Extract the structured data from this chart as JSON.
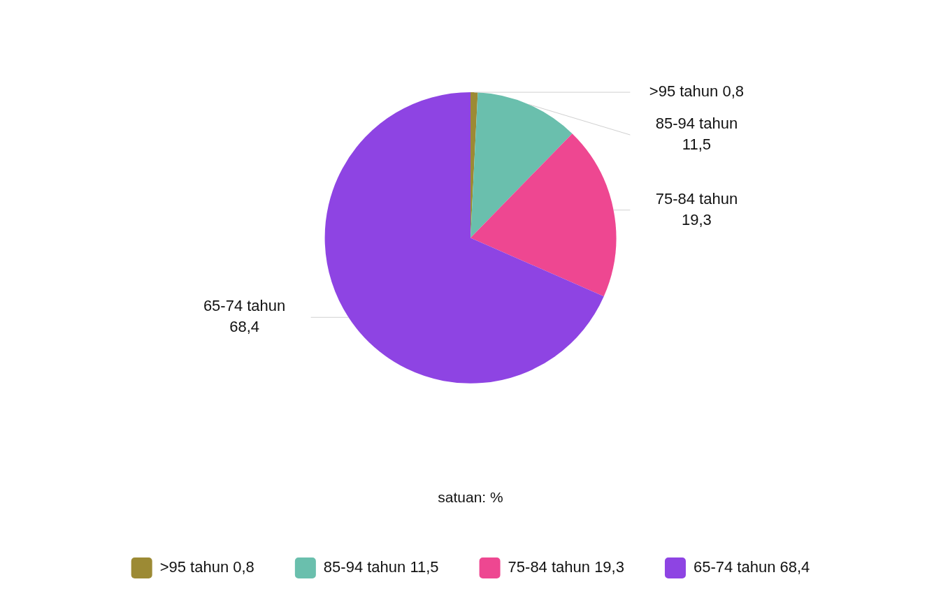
{
  "chart_data": {
    "type": "pie",
    "categories": [
      ">95 tahun 0,8",
      "85-94 tahun 11,5",
      "75-84 tahun 19,3",
      "65-74 tahun 68,4"
    ],
    "values": [
      0.8,
      11.5,
      19.3,
      68.4
    ],
    "colors": [
      "#9c8a34",
      "#6abfad",
      "#ee4791",
      "#8e44e3"
    ],
    "annotations": [
      "satuan: %"
    ],
    "legend": "bottom"
  }
}
